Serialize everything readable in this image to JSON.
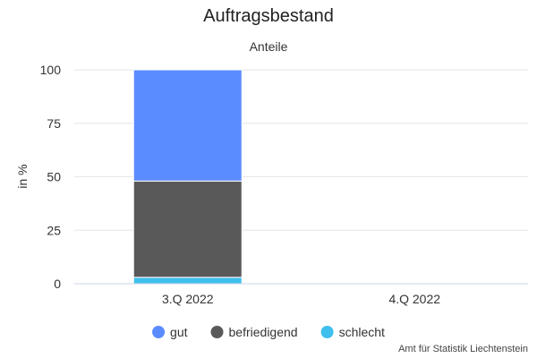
{
  "chart_data": {
    "type": "bar",
    "stacked": true,
    "title": "Auftragsbestand",
    "subtitle": "Anteile",
    "xlabel": "",
    "ylabel": "in %",
    "categories": [
      "3.Q 2022",
      "4.Q 2022"
    ],
    "ylim": [
      0,
      100
    ],
    "yticks": [
      0,
      25,
      50,
      75,
      100
    ],
    "grid": true,
    "legend_position": "bottom",
    "series": [
      {
        "name": "gut",
        "color": "#5b8cff",
        "values": [
          52,
          null
        ]
      },
      {
        "name": "befriedigend",
        "color": "#595959",
        "values": [
          45,
          null
        ]
      },
      {
        "name": "schlecht",
        "color": "#3fbfee",
        "values": [
          3,
          null
        ]
      }
    ]
  },
  "credit": "Amt für Statistik Liechtenstein"
}
